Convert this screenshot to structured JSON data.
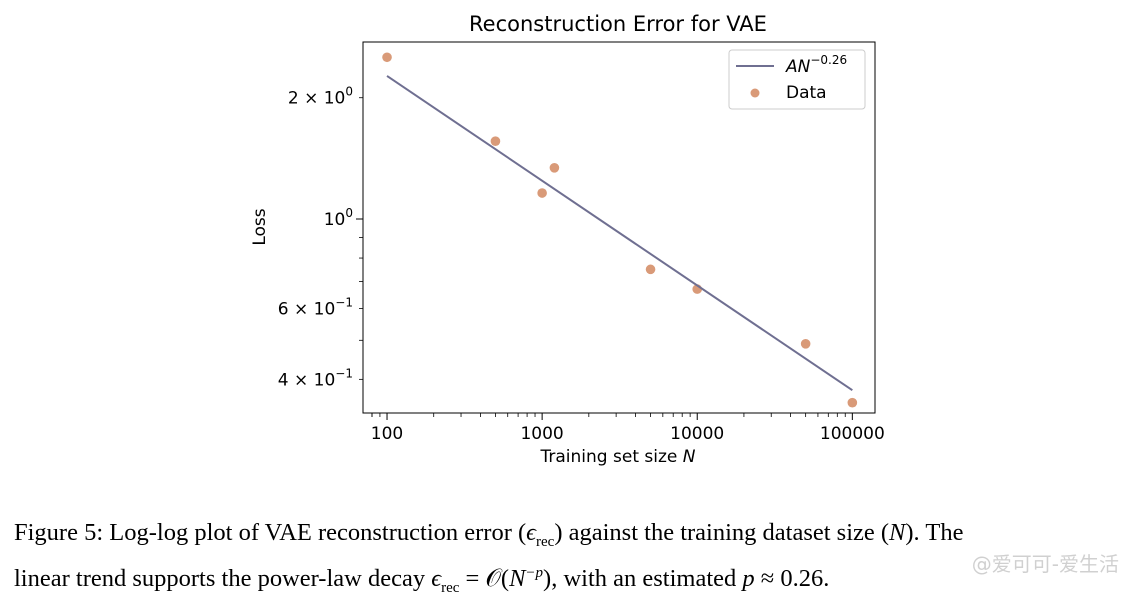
{
  "chart_data": {
    "type": "scatter",
    "title": "Reconstruction Error for VAE",
    "xlabel_prefix": "Training set size ",
    "xlabel_var": "N",
    "ylabel": "Loss",
    "xscale": "log",
    "yscale": "log",
    "xlim": [
      70,
      140000
    ],
    "ylim": [
      0.33,
      2.75
    ],
    "xticks": [
      {
        "value": 100,
        "label": "100"
      },
      {
        "value": 1000,
        "label": "1000"
      },
      {
        "value": 10000,
        "label": "10000"
      },
      {
        "value": 100000,
        "label": "100000"
      }
    ],
    "yticks": [
      {
        "value": 2.0,
        "mant": "2",
        "exp": "0"
      },
      {
        "value": 1.0,
        "mant": "",
        "exp": "0"
      },
      {
        "value": 0.6,
        "mant": "6",
        "exp": "−1"
      },
      {
        "value": 0.4,
        "mant": "4",
        "exp": "−1"
      }
    ],
    "series": [
      {
        "name": "Data",
        "kind": "scatter",
        "color": "#d99a78",
        "x": [
          100,
          500,
          1000,
          1200,
          5000,
          10000,
          50000,
          100000
        ],
        "y": [
          2.52,
          1.56,
          1.16,
          1.34,
          0.75,
          0.67,
          0.49,
          0.35
        ]
      },
      {
        "name": "fit",
        "kind": "line",
        "color": "#6f6f91",
        "A": 7.5,
        "p": 0.26,
        "x_range": [
          100,
          100000
        ]
      }
    ],
    "legend": {
      "position": "top-right",
      "fit_label_var": "AN",
      "fit_label_exp": "−0.26",
      "data_label": "Data"
    },
    "grid": false
  },
  "caption": {
    "line1_a": "Figure 5: Log-log plot of VAE reconstruction error (",
    "eps": "ϵ",
    "rec": "rec",
    "line1_b": ") against the training dataset size (",
    "N": "N",
    "line1_c": "). The",
    "line2_a": "linear trend supports the power-law decay ",
    "line2_b": " = 𝒪(",
    "exp_p": "−p",
    "line2_c": "), with an estimated ",
    "p": "p",
    "line2_d": " ≈ 0.26."
  },
  "watermark": "@爱可可-爱生活"
}
